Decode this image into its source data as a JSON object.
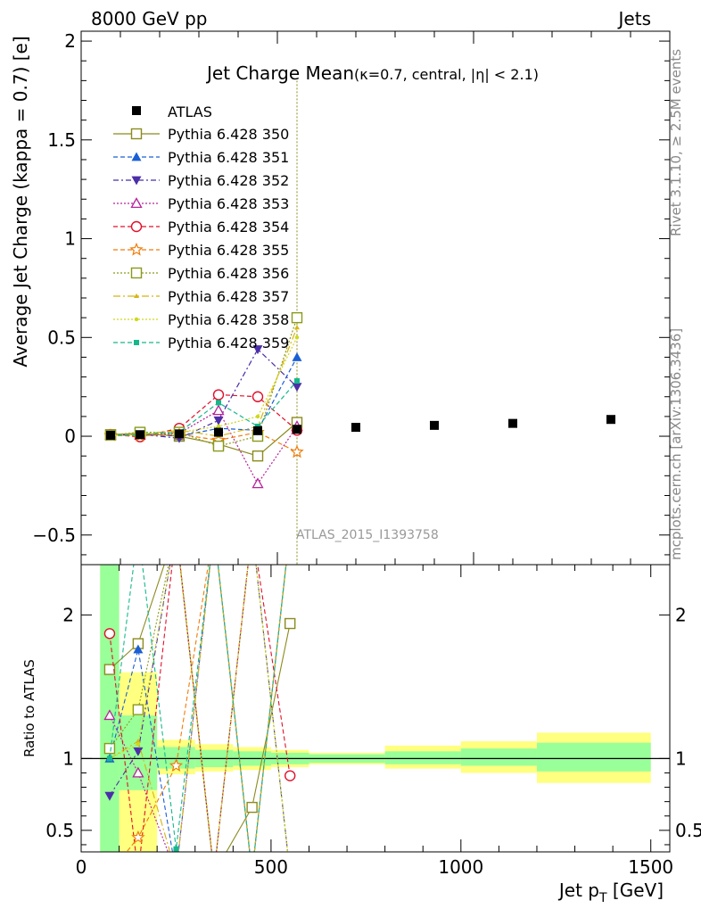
{
  "header": {
    "left": "8000 GeV pp",
    "right": "Jets"
  },
  "side_labels": {
    "rivet": "Rivet 3.1.10, ≥ 2.5M events",
    "mcplots": "mcplots.cern.ch [arXiv:1306.3436]"
  },
  "chart_data": [
    {
      "type": "scatter",
      "title": "Jet Charge Mean",
      "subtitle": "(κ=0.7, central, |η| < 2.1)",
      "ylabel": "Average Jet Charge (kappa = 0.7) [e]",
      "watermark": "ATLAS_2015_I1393758",
      "xlim": [
        0,
        1500
      ],
      "ylim": [
        -0.65,
        2.05
      ],
      "yticks": [
        -0.5,
        0,
        0.5,
        1,
        1.5,
        2
      ],
      "ytick_labels": [
        "−0.5",
        "0",
        "0.5",
        "1",
        "1.5",
        "2"
      ],
      "legend_position": "top-left",
      "data_series": {
        "name": "ATLAS",
        "x": [
          75,
          150,
          250,
          350,
          450,
          550,
          700,
          900,
          1100,
          1350
        ],
        "y": [
          0.005,
          0.008,
          0.012,
          0.02,
          0.028,
          0.035,
          0.045,
          0.055,
          0.065,
          0.085
        ]
      },
      "series": [
        {
          "name": "Pythia 6.428 350",
          "color": "#8b8b1f",
          "marker": "square-open",
          "dash": "",
          "x": [
            75,
            150,
            250,
            350,
            450,
            550
          ],
          "y": [
            0.008,
            0.015,
            0.0,
            -0.04,
            -0.1,
            0.07
          ]
        },
        {
          "name": "Pythia 6.428 351",
          "color": "#1a5fd6",
          "marker": "triangle-up",
          "dash": "5,3",
          "x": [
            75,
            150,
            250,
            350,
            450,
            550
          ],
          "y": [
            0.002,
            0.013,
            0.0,
            0.04,
            0.03,
            0.4
          ]
        },
        {
          "name": "Pythia 6.428 352",
          "color": "#4b2ea8",
          "marker": "triangle-down",
          "dash": "6,3,2,3",
          "x": [
            75,
            150,
            250,
            350,
            450,
            550
          ],
          "y": [
            0.003,
            0.01,
            -0.01,
            0.08,
            0.44,
            0.25
          ]
        },
        {
          "name": "Pythia 6.428 353",
          "color": "#b7239a",
          "marker": "triangle-open",
          "dash": "2,2",
          "x": [
            75,
            150,
            250,
            350,
            450,
            550
          ],
          "y": [
            0.006,
            0.005,
            0.015,
            0.13,
            -0.24,
            0.05
          ]
        },
        {
          "name": "Pythia 6.428 354",
          "color": "#e0102a",
          "marker": "circle-open",
          "dash": "5,3",
          "x": [
            75,
            150,
            250,
            350,
            450,
            550
          ],
          "y": [
            0.008,
            -0.003,
            0.04,
            0.21,
            0.2,
            0.03
          ]
        },
        {
          "name": "Pythia 6.428 355",
          "color": "#f07c0a",
          "marker": "star-open",
          "dash": "5,3",
          "x": [
            75,
            150,
            250,
            350,
            450,
            550
          ],
          "y": [
            0.004,
            0.003,
            0.01,
            -0.02,
            0.02,
            -0.08
          ]
        },
        {
          "name": "Pythia 6.428 356",
          "color": "#8b9a1a",
          "marker": "square-open",
          "dash": "2,2",
          "x": [
            75,
            150,
            250,
            350,
            450,
            550
          ],
          "y": [
            0.006,
            0.02,
            0.02,
            -0.05,
            0.0,
            0.6
          ]
        },
        {
          "name": "Pythia 6.428 357",
          "color": "#d7b512",
          "marker": "tri-small",
          "dash": "8,3,2,3",
          "x": [
            75,
            150,
            250,
            350,
            450,
            550
          ],
          "y": [
            0.005,
            0.01,
            0.03,
            0.0,
            0.05,
            0.55
          ]
        },
        {
          "name": "Pythia 6.428 358",
          "color": "#cfd81a",
          "marker": "dot",
          "dash": "2,2",
          "x": [
            75,
            150,
            250,
            350,
            450,
            550
          ],
          "y": [
            0.004,
            0.012,
            0.02,
            0.05,
            0.1,
            0.5
          ]
        },
        {
          "name": "Pythia 6.428 359",
          "color": "#14b88a",
          "marker": "square-small",
          "dash": "5,3",
          "x": [
            75,
            150,
            250,
            350,
            450,
            550
          ],
          "y": [
            0.005,
            0.008,
            0.02,
            0.17,
            0.05,
            0.28
          ]
        }
      ]
    },
    {
      "type": "scatter",
      "ylabel": "Ratio to ATLAS",
      "xlabel": "Jet p",
      "xlabel_sub": "T",
      "xlabel_unit": " [GeV]",
      "xlim": [
        0,
        1550
      ],
      "ylim": [
        0.35,
        2.35
      ],
      "xticks": [
        0,
        500,
        1000,
        1500
      ],
      "xtick_labels": [
        "0",
        "500",
        "1000",
        "1500"
      ],
      "yticks": [
        0.5,
        1,
        2
      ],
      "ytick_labels": [
        "0.5",
        "1",
        "2"
      ],
      "bands": [
        {
          "x0": 50,
          "x1": 100,
          "y68": [
            0.35,
            2.35
          ],
          "y95": [
            0.35,
            2.35
          ]
        },
        {
          "x0": 100,
          "x1": 200,
          "y68": [
            0.78,
            1.3
          ],
          "y95": [
            0.35,
            1.6
          ]
        },
        {
          "x0": 200,
          "x1": 300,
          "y68": [
            0.93,
            1.08
          ],
          "y95": [
            0.89,
            1.13
          ]
        },
        {
          "x0": 300,
          "x1": 400,
          "y68": [
            0.94,
            1.06
          ],
          "y95": [
            0.91,
            1.1
          ]
        },
        {
          "x0": 400,
          "x1": 500,
          "y68": [
            0.95,
            1.05
          ],
          "y95": [
            0.92,
            1.08
          ]
        },
        {
          "x0": 500,
          "x1": 600,
          "y68": [
            0.96,
            1.04
          ],
          "y95": [
            0.94,
            1.06
          ]
        },
        {
          "x0": 600,
          "x1": 800,
          "y68": [
            0.97,
            1.03
          ],
          "y95": [
            0.96,
            1.04
          ]
        },
        {
          "x0": 800,
          "x1": 1000,
          "y68": [
            0.96,
            1.05
          ],
          "y95": [
            0.93,
            1.09
          ]
        },
        {
          "x0": 1000,
          "x1": 1200,
          "y68": [
            0.95,
            1.07
          ],
          "y95": [
            0.9,
            1.12
          ]
        },
        {
          "x0": 1200,
          "x1": 1500,
          "y68": [
            0.91,
            1.11
          ],
          "y95": [
            0.83,
            1.18
          ]
        }
      ],
      "ratio_series": [
        {
          "name": "Pythia 6.428 350",
          "x": [
            75,
            150,
            450,
            550
          ],
          "y": [
            1.62,
            1.8,
            0.66,
            1.94
          ]
        },
        {
          "name": "Pythia 6.428 351",
          "x": [
            75,
            150
          ],
          "y": [
            1.0,
            1.76
          ]
        },
        {
          "name": "Pythia 6.428 352",
          "x": [
            75,
            150
          ],
          "y": [
            0.74,
            1.05
          ]
        },
        {
          "name": "Pythia 6.428 353",
          "x": [
            75,
            150
          ],
          "y": [
            1.3,
            0.9
          ]
        },
        {
          "name": "Pythia 6.428 354",
          "x": [
            75,
            550
          ],
          "y": [
            1.87,
            0.88
          ]
        },
        {
          "name": "Pythia 6.428 355",
          "x": [
            150,
            250
          ],
          "y": [
            0.45,
            0.95
          ]
        },
        {
          "name": "Pythia 6.428 356",
          "x": [
            75,
            150
          ],
          "y": [
            1.07,
            1.34
          ]
        },
        {
          "name": "Pythia 6.428 357",
          "x": [
            75,
            150
          ],
          "y": [
            1.0,
            1.12
          ]
        },
        {
          "name": "Pythia 6.428 358",
          "x": [
            75,
            150
          ],
          "y": [
            1.0,
            1.1
          ]
        },
        {
          "name": "Pythia 6.428 359",
          "x": [
            75,
            250
          ],
          "y": [
            1.0,
            0.37
          ]
        }
      ]
    }
  ]
}
